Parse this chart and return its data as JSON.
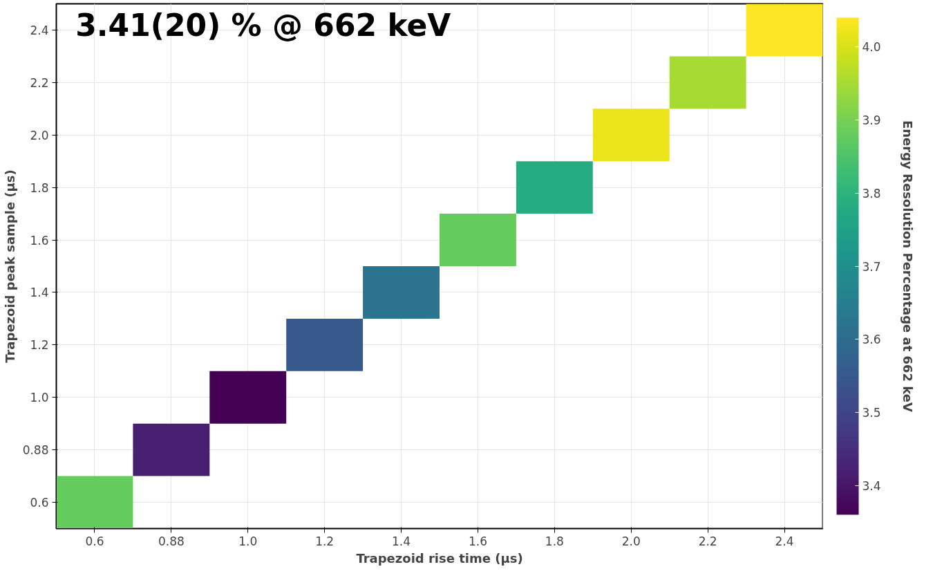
{
  "chart_data": {
    "type": "heatmap",
    "xlabel": "Trapezoid rise time (µs)",
    "ylabel": "Trapezoid peak sample (µs)",
    "clabel": "Energy Resolution Percentage at 662 keV",
    "annotations": [
      "3.41(20) % @ 662 keV"
    ],
    "categories": [
      "0.6",
      "0.88",
      "1.0",
      "1.2",
      "1.4",
      "1.6",
      "1.8",
      "2.0",
      "2.2",
      "2.4"
    ],
    "y_categories": [
      "2.4",
      "2.2",
      "2.0",
      "1.8",
      "1.6",
      "1.4",
      "1.2",
      "1.0",
      "0.88",
      "0.6"
    ],
    "cells": [
      [
        null,
        null,
        null,
        null,
        null,
        null,
        null,
        null,
        null,
        4.04
      ],
      [
        null,
        null,
        null,
        null,
        null,
        null,
        null,
        null,
        3.95,
        null
      ],
      [
        null,
        null,
        null,
        null,
        null,
        null,
        null,
        4.02,
        null,
        null
      ],
      [
        null,
        null,
        null,
        null,
        null,
        null,
        3.78,
        null,
        null,
        null
      ],
      [
        null,
        null,
        null,
        null,
        null,
        3.88,
        null,
        null,
        null,
        null
      ],
      [
        null,
        null,
        null,
        null,
        3.62,
        null,
        null,
        null,
        null,
        null
      ],
      [
        null,
        null,
        null,
        3.55,
        null,
        null,
        null,
        null,
        null,
        null
      ],
      [
        null,
        null,
        3.36,
        null,
        null,
        null,
        null,
        null,
        null,
        null
      ],
      [
        null,
        3.42,
        null,
        null,
        null,
        null,
        null,
        null,
        null,
        null
      ],
      [
        3.88,
        null,
        null,
        null,
        null,
        null,
        null,
        null,
        null,
        null
      ]
    ],
    "clim": [
      3.36,
      4.04
    ],
    "cticks": [
      3.4,
      3.5,
      3.6,
      3.7,
      3.8,
      3.9,
      {
        "value": 4.0,
        "label": "4.0"
      }
    ],
    "grid": true
  }
}
